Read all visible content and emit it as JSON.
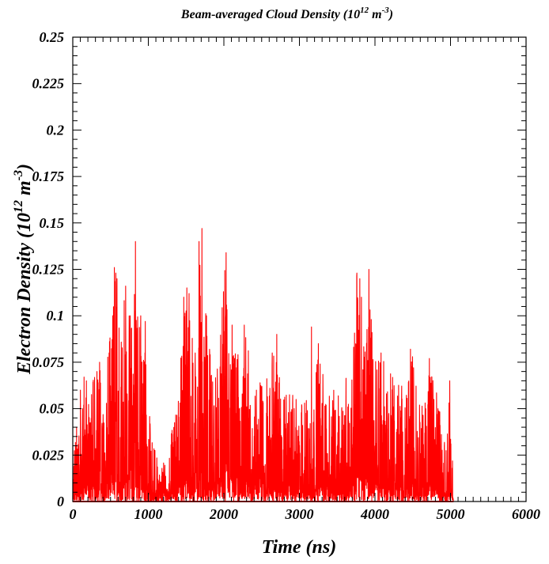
{
  "chart_data": {
    "type": "line",
    "title": {
      "prefix": "Beam-averaged Cloud Density (10",
      "exp1": "12",
      "mid": " m",
      "exp2": "-3",
      "suffix": ")"
    },
    "xlabel": "Time (ns)",
    "ylabel": {
      "prefix": "Electron Density (10",
      "exp1": "12",
      "mid": "  m",
      "exp2": "-3",
      "suffix": ")"
    },
    "xlim": [
      0,
      6000
    ],
    "ylim": [
      0,
      0.25
    ],
    "x_ticks": [
      "0",
      "1000",
      "2000",
      "3000",
      "4000",
      "5000",
      "6000"
    ],
    "y_ticks": [
      "0",
      "0.025",
      "0.05",
      "0.075",
      "0.1",
      "0.125",
      "0.15",
      "0.175",
      "0.2",
      "0.225",
      "0.25"
    ],
    "series": [
      {
        "color": "#ff0000",
        "x_start": 0,
        "x_end": 5040,
        "envelope": [
          [
            0,
            0.01
          ],
          [
            30,
            0.04
          ],
          [
            80,
            0.035
          ],
          [
            150,
            0.065
          ],
          [
            200,
            0.06
          ],
          [
            300,
            0.07
          ],
          [
            360,
            0.075
          ],
          [
            420,
            0.06
          ],
          [
            480,
            0.085
          ],
          [
            520,
            0.1
          ],
          [
            550,
            0.126
          ],
          [
            580,
            0.12
          ],
          [
            620,
            0.1
          ],
          [
            700,
            0.116
          ],
          [
            780,
            0.1
          ],
          [
            830,
            0.14
          ],
          [
            880,
            0.1
          ],
          [
            940,
            0.09
          ],
          [
            990,
            0.08
          ],
          [
            1020,
            0.05
          ],
          [
            1080,
            0.03
          ],
          [
            1160,
            0.015
          ],
          [
            1250,
            0.035
          ],
          [
            1330,
            0.04
          ],
          [
            1400,
            0.06
          ],
          [
            1460,
            0.11
          ],
          [
            1520,
            0.115
          ],
          [
            1570,
            0.09
          ],
          [
            1640,
            0.08
          ],
          [
            1690,
            0.14
          ],
          [
            1710,
            0.147
          ],
          [
            1760,
            0.11
          ],
          [
            1820,
            0.085
          ],
          [
            1900,
            0.07
          ],
          [
            1950,
            0.09
          ],
          [
            2020,
            0.134
          ],
          [
            2060,
            0.12
          ],
          [
            2120,
            0.08
          ],
          [
            2180,
            0.09
          ],
          [
            2230,
            0.06
          ],
          [
            2300,
            0.095
          ],
          [
            2360,
            0.07
          ],
          [
            2430,
            0.06
          ],
          [
            2500,
            0.07
          ],
          [
            2580,
            0.067
          ],
          [
            2640,
            0.08
          ],
          [
            2700,
            0.09
          ],
          [
            2760,
            0.058
          ],
          [
            2860,
            0.06
          ],
          [
            2920,
            0.06
          ],
          [
            3000,
            0.05
          ],
          [
            3100,
            0.065
          ],
          [
            3200,
            0.06
          ],
          [
            3250,
            0.085
          ],
          [
            3330,
            0.07
          ],
          [
            3400,
            0.06
          ],
          [
            3500,
            0.06
          ],
          [
            3600,
            0.07
          ],
          [
            3700,
            0.07
          ],
          [
            3760,
            0.123
          ],
          [
            3800,
            0.11
          ],
          [
            3860,
            0.085
          ],
          [
            3920,
            0.118
          ],
          [
            3960,
            0.098
          ],
          [
            4000,
            0.08
          ],
          [
            4080,
            0.08
          ],
          [
            4160,
            0.07
          ],
          [
            4260,
            0.07
          ],
          [
            4340,
            0.065
          ],
          [
            4420,
            0.06
          ],
          [
            4500,
            0.082
          ],
          [
            4560,
            0.06
          ],
          [
            4640,
            0.05
          ],
          [
            4720,
            0.077
          ],
          [
            4780,
            0.065
          ],
          [
            4850,
            0.055
          ],
          [
            4900,
            0.03
          ],
          [
            4960,
            0.04
          ],
          [
            4990,
            0.065
          ],
          [
            5030,
            0.02
          ],
          [
            5040,
            0.005
          ]
        ],
        "peaks": [
          [
            50,
            0.04
          ],
          [
            100,
            0.06
          ],
          [
            130,
            0.05
          ],
          [
            150,
            0.067
          ],
          [
            180,
            0.065
          ],
          [
            320,
            0.07
          ],
          [
            355,
            0.075
          ],
          [
            480,
            0.08
          ],
          [
            530,
            0.1
          ],
          [
            550,
            0.126
          ],
          [
            570,
            0.123
          ],
          [
            585,
            0.12
          ],
          [
            700,
            0.116
          ],
          [
            760,
            0.1
          ],
          [
            830,
            0.14
          ],
          [
            900,
            0.1
          ],
          [
            960,
            0.097
          ],
          [
            1470,
            0.11
          ],
          [
            1510,
            0.115
          ],
          [
            1540,
            0.112
          ],
          [
            1620,
            0.08
          ],
          [
            1670,
            0.14
          ],
          [
            1710,
            0.147
          ],
          [
            1770,
            0.1
          ],
          [
            2030,
            0.134
          ],
          [
            2110,
            0.095
          ],
          [
            2270,
            0.095
          ],
          [
            2430,
            0.06
          ],
          [
            2640,
            0.08
          ],
          [
            2700,
            0.09
          ],
          [
            3160,
            0.094
          ],
          [
            3250,
            0.085
          ],
          [
            3760,
            0.123
          ],
          [
            3800,
            0.12
          ],
          [
            3820,
            0.11
          ],
          [
            3920,
            0.125
          ],
          [
            3950,
            0.098
          ],
          [
            4080,
            0.08
          ],
          [
            4470,
            0.082
          ],
          [
            4720,
            0.077
          ],
          [
            4990,
            0.065
          ]
        ]
      }
    ]
  }
}
